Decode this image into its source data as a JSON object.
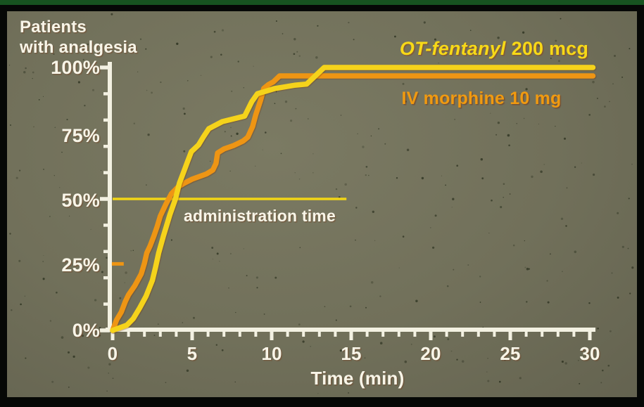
{
  "title": {
    "line1": "Patients",
    "line2": "with analgesia"
  },
  "y_axis": {
    "labels": [
      "100%",
      "75%",
      "50%",
      "25%",
      "0%"
    ]
  },
  "x_axis": {
    "labels": [
      "0",
      "5",
      "10",
      "15",
      "20",
      "25",
      "30"
    ],
    "title": "Time (min)"
  },
  "annotation": {
    "label": "administration time"
  },
  "legend": {
    "fentanyl_name": "OT-fentanyl",
    "fentanyl_dose": "200 mcg",
    "morphine": "IV morphine 10 mg"
  },
  "colors": {
    "background": "#71705a",
    "frame": "#060806",
    "top_strip_green": "#175420",
    "axis": "#f3f1e2",
    "text_white": "#f8f5e8",
    "fentanyl_yellow": "#f5d31b",
    "morphine_orange": "#ee9514",
    "admin_line_yellow": "#f2d516"
  },
  "chart_data": {
    "type": "line",
    "title": "Patients with analgesia",
    "xlabel": "Time (min)",
    "ylabel": "Patients with analgesia (%)",
    "xlim": [
      0,
      30
    ],
    "ylim": [
      0,
      100
    ],
    "grid": false,
    "legend_position": "top-right",
    "x_ticks": {
      "minor_step": 1,
      "major_step": 5,
      "labeled": [
        0,
        5,
        10,
        15,
        20,
        25,
        30
      ]
    },
    "y_ticks": {
      "minor_step": 10,
      "major": [
        0,
        50,
        100
      ],
      "labeled": [
        0,
        25,
        50,
        75,
        100
      ]
    },
    "series": [
      {
        "name": "IV morphine 10 mg",
        "color": "#ee9514",
        "points": [
          [
            0,
            0
          ],
          [
            0.25,
            4
          ],
          [
            0.55,
            7
          ],
          [
            0.8,
            11
          ],
          [
            1.0,
            13.5
          ],
          [
            1.4,
            17
          ],
          [
            1.8,
            21.5
          ],
          [
            2.0,
            25.5
          ],
          [
            2.15,
            29.5
          ],
          [
            2.35,
            32
          ],
          [
            2.6,
            36
          ],
          [
            2.8,
            39.5
          ],
          [
            3.0,
            43.5
          ],
          [
            3.35,
            48
          ],
          [
            3.7,
            52
          ],
          [
            4.1,
            54.5
          ],
          [
            4.5,
            56
          ],
          [
            5.0,
            57.5
          ],
          [
            5.9,
            59.5
          ],
          [
            6.3,
            61
          ],
          [
            6.5,
            63.5
          ],
          [
            6.6,
            67.5
          ],
          [
            7.0,
            69
          ],
          [
            7.6,
            70.3
          ],
          [
            8.2,
            72
          ],
          [
            8.5,
            73.5
          ],
          [
            8.8,
            77.5
          ],
          [
            9.0,
            82
          ],
          [
            9.3,
            87.5
          ],
          [
            9.5,
            92
          ],
          [
            9.8,
            93.5
          ],
          [
            10.1,
            94.5
          ],
          [
            10.5,
            96.8
          ],
          [
            30.2,
            96.8
          ]
        ]
      },
      {
        "name": "OT-fentanyl 200 mcg",
        "color": "#f5d31b",
        "points": [
          [
            0,
            0
          ],
          [
            0.9,
            2
          ],
          [
            1.3,
            4.5
          ],
          [
            1.7,
            8.5
          ],
          [
            2.1,
            13
          ],
          [
            2.5,
            19
          ],
          [
            2.7,
            24
          ],
          [
            2.9,
            29.5
          ],
          [
            3.2,
            36
          ],
          [
            3.6,
            44
          ],
          [
            3.95,
            50
          ],
          [
            4.2,
            56
          ],
          [
            4.45,
            60
          ],
          [
            4.7,
            64
          ],
          [
            4.95,
            68
          ],
          [
            5.4,
            70.5
          ],
          [
            5.7,
            73.5
          ],
          [
            6.05,
            76.7
          ],
          [
            6.9,
            79.4
          ],
          [
            8.3,
            81.5
          ],
          [
            8.75,
            87
          ],
          [
            9.1,
            90
          ],
          [
            10.2,
            92
          ],
          [
            11.5,
            93.3
          ],
          [
            12.2,
            93.7
          ],
          [
            13.3,
            100
          ],
          [
            30.2,
            100
          ]
        ]
      }
    ],
    "annotations": [
      {
        "type": "hline",
        "label": "administration time",
        "y": 50,
        "x_from": 0,
        "x_to": 14.7,
        "color": "#f2d516"
      },
      {
        "type": "dash",
        "y": 25.3,
        "x_from": -0.05,
        "x_to": 0.7,
        "color": "#ee9514"
      }
    ]
  }
}
